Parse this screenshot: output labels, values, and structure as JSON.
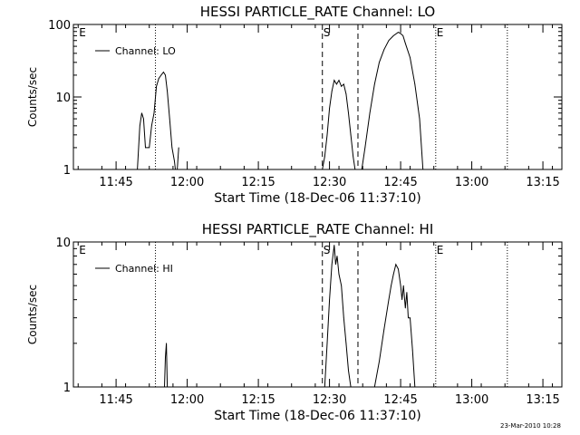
{
  "footer": {
    "timestamp": "23-Mar-2010 10:28"
  },
  "chart_data": [
    {
      "type": "line",
      "title": "HESSI PARTICLE_RATE Channel: LO",
      "xlabel": "Start Time (18-Dec-06 11:37:10)",
      "ylabel": "Counts/sec",
      "y_scale": "log",
      "ylim": [
        1,
        100
      ],
      "y_ticks": [
        "1",
        "10",
        "100"
      ],
      "x_ticks": [
        "11:45",
        "12:00",
        "12:15",
        "12:30",
        "12:45",
        "13:00",
        "13:15"
      ],
      "xlim_minutes_after_1137": [
        -1,
        102
      ],
      "legend": {
        "placement": "top-left",
        "entries": [
          "Channel: LO"
        ]
      },
      "markers": [
        {
          "label": "E",
          "time": "11:37",
          "style": "none"
        },
        {
          "label": "",
          "time": "11:53.3",
          "style": "dotted"
        },
        {
          "label": "S",
          "time": "12:28.5",
          "style": "dashed"
        },
        {
          "label": "",
          "time": "12:36",
          "style": "dashed"
        },
        {
          "label": "E",
          "time": "12:52.4",
          "style": "dotted"
        },
        {
          "label": "",
          "time": "13:07.5",
          "style": "dotted"
        }
      ],
      "series": [
        {
          "name": "Channel: LO",
          "segments": [
            {
              "x": [
                "11:49.5",
                "11:50",
                "11:50.4",
                "11:50.8",
                "11:51.2",
                "11:51.6",
                "11:52",
                "11:52.5",
                "11:53",
                "11:53.5",
                "11:54",
                "11:54.5",
                "11:55",
                "11:55.4",
                "11:55.8",
                "11:56.3",
                "11:56.8",
                "11:57.3",
                "11:57.5"
              ],
              "y": [
                1,
                4,
                6,
                5,
                2,
                2,
                2,
                4,
                6,
                14,
                18,
                20,
                22,
                20,
                12,
                5,
                2,
                1.3,
                1
              ]
            },
            {
              "x": [
                "11:57.9",
                "11:58.2"
              ],
              "y": [
                1,
                2
              ]
            },
            {
              "x": [
                "12:28.5",
                "12:29",
                "12:29.5",
                "12:30",
                "12:30.5",
                "12:31",
                "12:31.5",
                "12:32",
                "12:32.5",
                "12:33",
                "12:33.5",
                "12:34",
                "12:34.5",
                "12:35",
                "12:35.4"
              ],
              "y": [
                1,
                1.5,
                3,
                7,
                12,
                17,
                15,
                17,
                14,
                15,
                11,
                6,
                3,
                1.5,
                1
              ]
            },
            {
              "x": [
                "12:36.8",
                "12:37.5",
                "12:38.5",
                "12:39.5",
                "12:40.5",
                "12:41.5",
                "12:42.5",
                "12:43.5",
                "12:44.5",
                "12:45",
                "12:45.5",
                "12:46",
                "12:47",
                "12:48",
                "12:49",
                "12:49.7"
              ],
              "y": [
                1,
                2,
                6,
                15,
                30,
                45,
                60,
                70,
                78,
                75,
                70,
                55,
                35,
                15,
                5,
                1
              ]
            }
          ]
        }
      ]
    },
    {
      "type": "line",
      "title": "HESSI PARTICLE_RATE Channel: HI",
      "xlabel": "Start Time (18-Dec-06 11:37:10)",
      "ylabel": "Counts/sec",
      "y_scale": "log",
      "ylim": [
        1,
        10
      ],
      "y_ticks": [
        "1",
        "10"
      ],
      "x_ticks": [
        "11:45",
        "12:00",
        "12:15",
        "12:30",
        "12:45",
        "13:00",
        "13:15"
      ],
      "xlim_minutes_after_1137": [
        -1,
        102
      ],
      "legend": {
        "placement": "top-left",
        "entries": [
          "Channel: HI"
        ]
      },
      "markers": [
        {
          "label": "E",
          "time": "11:37",
          "style": "none"
        },
        {
          "label": "",
          "time": "11:53.3",
          "style": "dotted"
        },
        {
          "label": "S",
          "time": "12:28.5",
          "style": "dashed"
        },
        {
          "label": "",
          "time": "12:36",
          "style": "dashed"
        },
        {
          "label": "E",
          "time": "12:52.4",
          "style": "dotted"
        },
        {
          "label": "",
          "time": "13:07.5",
          "style": "dotted"
        }
      ],
      "series": [
        {
          "name": "Channel: HI",
          "segments": [
            {
              "x": [
                "11:55.2",
                "11:55.4",
                "11:55.6",
                "11:55.8"
              ],
              "y": [
                1,
                1.6,
                2,
                1
              ]
            },
            {
              "x": [
                "12:29",
                "12:29.5",
                "12:30",
                "12:30.5",
                "12:31",
                "12:31.3",
                "12:31.6",
                "12:32",
                "12:32.5",
                "12:33",
                "12:33.5",
                "12:34",
                "12:34.5"
              ],
              "y": [
                1,
                2,
                4,
                7,
                9.5,
                7,
                8,
                6,
                5,
                3,
                2,
                1.3,
                1
              ]
            },
            {
              "x": [
                "12:39.5",
                "12:40.5",
                "12:41.5",
                "12:42.5",
                "12:43",
                "12:43.5",
                "12:44",
                "12:44.5",
                "12:45",
                "12:45.3",
                "12:45.6",
                "12:46",
                "12:46.3",
                "12:46.6",
                "12:47",
                "12:47.5",
                "12:48"
              ],
              "y": [
                1,
                1.5,
                2.5,
                4,
                5,
                6,
                7,
                6.5,
                5,
                4,
                5,
                3.5,
                4.5,
                3,
                3,
                1.8,
                1
              ]
            }
          ]
        }
      ]
    }
  ]
}
